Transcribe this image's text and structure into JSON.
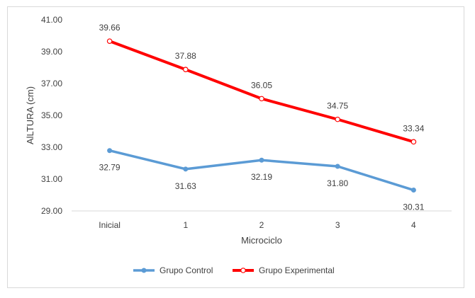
{
  "chart_data": {
    "type": "line",
    "categories": [
      "Inicial",
      "1",
      "2",
      "3",
      "4"
    ],
    "series": [
      {
        "name": "Grupo Control",
        "values": [
          32.79,
          31.63,
          32.19,
          31.8,
          30.31
        ],
        "color": "#5b9bd5"
      },
      {
        "name": "Grupo Experimental",
        "values": [
          39.66,
          37.88,
          36.05,
          34.75,
          33.34
        ],
        "color": "#ff0000"
      }
    ],
    "data_labels": {
      "Grupo Control": [
        "32.79",
        "31.63",
        "32.19",
        "31.80",
        "30.31"
      ],
      "Grupo Experimental": [
        "39.66",
        "37.88",
        "36.05",
        "34.75",
        "33.34"
      ]
    },
    "xlabel": "Microciclo",
    "ylabel": "AlLTURA (cm)",
    "ylim": [
      29.0,
      41.0
    ],
    "yticks": [
      "29.00",
      "31.00",
      "33.00",
      "35.00",
      "37.00",
      "39.00",
      "41.00"
    ],
    "grid": false,
    "legend_position": "bottom"
  }
}
